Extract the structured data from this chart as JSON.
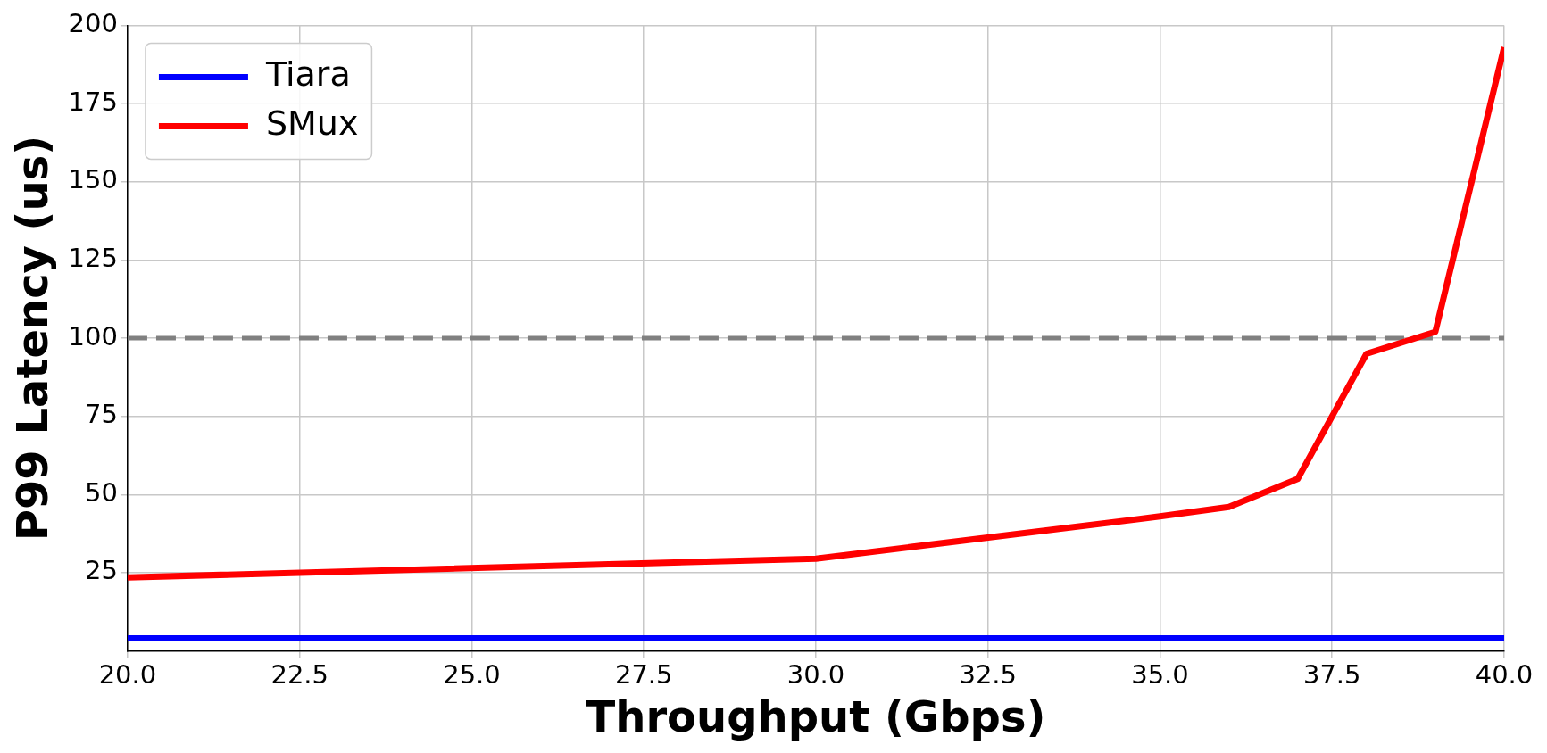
{
  "chart_data": {
    "type": "line",
    "xlabel": "Throughput (Gbps)",
    "ylabel": "P99 Latency (us)",
    "xlim": [
      20,
      40
    ],
    "ylim": [
      0,
      200
    ],
    "xticks": [
      {
        "value": 20,
        "label": "20.0"
      },
      {
        "value": 22.5,
        "label": "22.5"
      },
      {
        "value": 25,
        "label": "25.0"
      },
      {
        "value": 27.5,
        "label": "27.5"
      },
      {
        "value": 30,
        "label": "30.0"
      },
      {
        "value": 32.5,
        "label": "32.5"
      },
      {
        "value": 35,
        "label": "35.0"
      },
      {
        "value": 37.5,
        "label": "37.5"
      },
      {
        "value": 40,
        "label": "40.0"
      }
    ],
    "yticks": [
      25,
      50,
      75,
      100,
      125,
      150,
      175,
      200
    ],
    "series": [
      {
        "name": "Tiara",
        "color": "#0000ff",
        "x": [
          20,
          40
        ],
        "values": [
          4,
          4
        ]
      },
      {
        "name": "SMux",
        "color": "#ff0000",
        "x": [
          20,
          30,
          35,
          36,
          37,
          38,
          39,
          40
        ],
        "values": [
          23.5,
          29.5,
          43,
          46,
          55,
          95,
          102,
          193
        ]
      }
    ],
    "ref_lines": [
      {
        "axis": "y",
        "value": 100,
        "color": "#808080",
        "line_style": "dashed"
      }
    ],
    "grid": true,
    "legend": "top left",
    "marker": "none",
    "line_style": "solid"
  }
}
